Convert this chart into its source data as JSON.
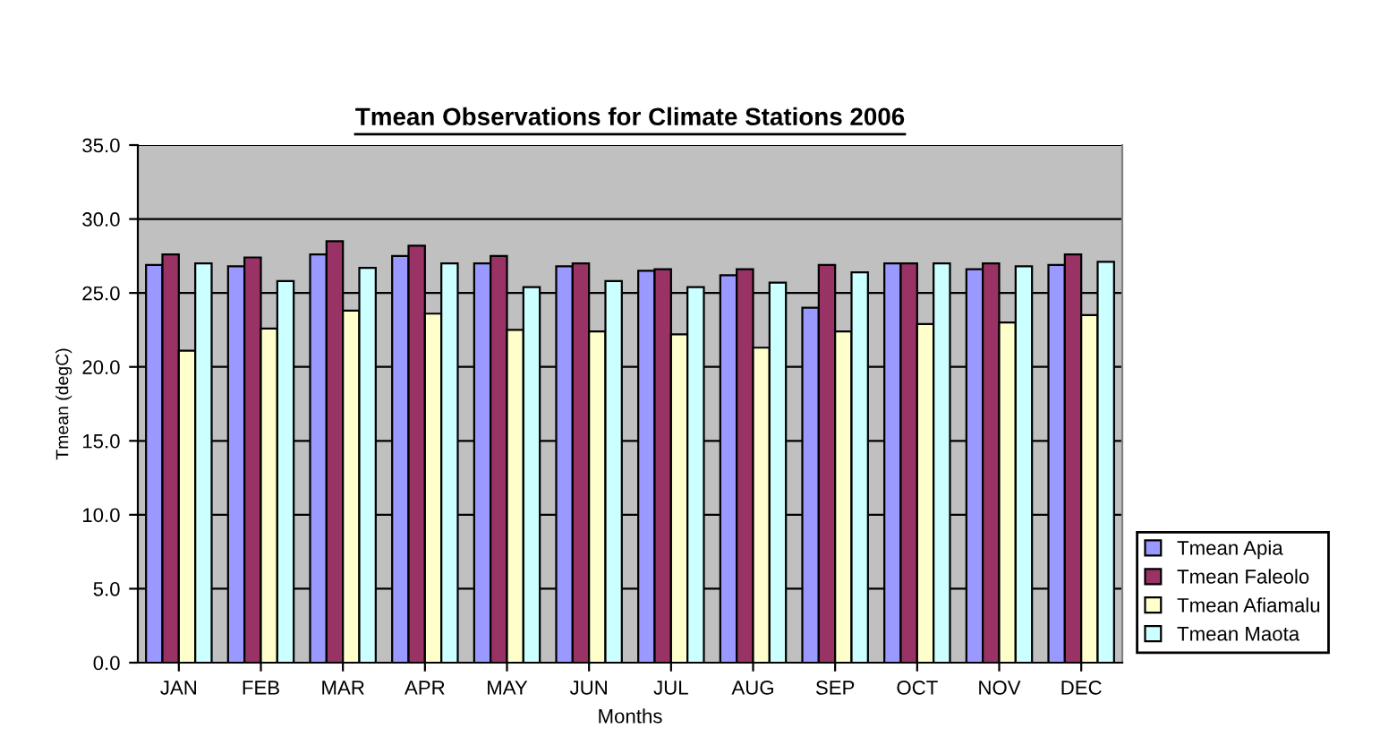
{
  "chart_data": {
    "type": "bar",
    "title": "Tmean Observations for Climate Stations 2006",
    "xlabel": "Months",
    "ylabel": "Tmean (degC)",
    "categories": [
      "JAN",
      "FEB",
      "MAR",
      "APR",
      "MAY",
      "JUN",
      "JUL",
      "AUG",
      "SEP",
      "OCT",
      "NOV",
      "DEC"
    ],
    "series": [
      {
        "name": "Tmean Apia",
        "color": "#9999ff",
        "values": [
          26.9,
          26.8,
          27.6,
          27.5,
          27.0,
          26.8,
          26.5,
          26.2,
          24.0,
          27.0,
          26.6,
          26.9
        ]
      },
      {
        "name": "Tmean Faleolo",
        "color": "#993366",
        "values": [
          27.6,
          27.4,
          28.5,
          28.2,
          27.5,
          27.0,
          26.6,
          26.6,
          26.9,
          27.0,
          27.0,
          27.6
        ]
      },
      {
        "name": "Tmean Afiamalu",
        "color": "#ffffcc",
        "values": [
          21.1,
          22.6,
          23.8,
          23.6,
          22.5,
          22.4,
          22.2,
          21.3,
          22.4,
          22.9,
          23.0,
          23.5
        ]
      },
      {
        "name": "Tmean Maota",
        "color": "#ccffff",
        "values": [
          27.0,
          25.8,
          26.7,
          27.0,
          25.4,
          25.8,
          25.4,
          25.7,
          26.4,
          27.0,
          26.8,
          27.1
        ]
      }
    ],
    "ylim": [
      0,
      35
    ],
    "yticks": [
      {
        "value": 0,
        "label": "0.0"
      },
      {
        "value": 5,
        "label": "5.0"
      },
      {
        "value": 10,
        "label": "10.0"
      },
      {
        "value": 15,
        "label": "15.0"
      },
      {
        "value": 20,
        "label": "20.0"
      },
      {
        "value": 25,
        "label": "25.0"
      },
      {
        "value": 30,
        "label": "30.0"
      },
      {
        "value": 35,
        "label": "35.0"
      }
    ],
    "grid": "y",
    "legend": "bottom right"
  }
}
